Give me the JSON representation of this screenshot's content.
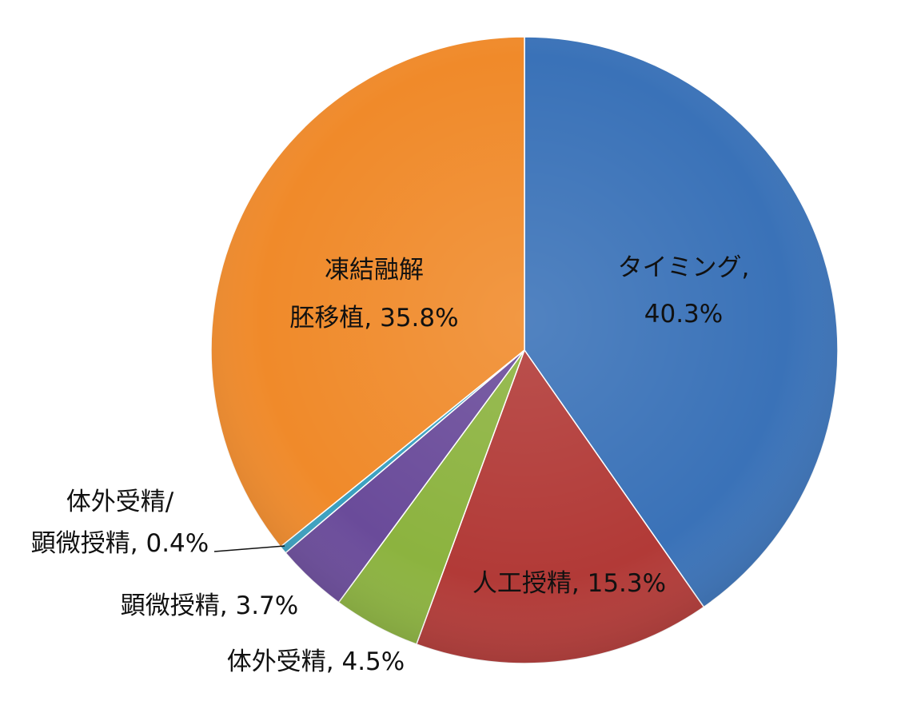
{
  "chart_data": {
    "type": "pie",
    "start_angle_deg": 0,
    "direction": "clockwise",
    "slices": [
      {
        "name": "タイミング",
        "value": 40.3,
        "color": "#3a72b8",
        "label_lines": [
          "タイミング,",
          "40.3%"
        ]
      },
      {
        "name": "人工授精",
        "value": 15.3,
        "color": "#b23a37",
        "label_lines": [
          "人工授精, 15.3%"
        ]
      },
      {
        "name": "体外受精",
        "value": 4.5,
        "color": "#8cb33f",
        "label_lines": [
          "体外受精, 4.5%"
        ]
      },
      {
        "name": "顕微授精",
        "value": 3.7,
        "color": "#6a4b9a",
        "label_lines": [
          "顕微授精, 3.7%"
        ]
      },
      {
        "name": "体外受精/顕微授精",
        "value": 0.4,
        "color": "#3aa0c0",
        "label_lines": [
          "体外受精/",
          "顕微授精, 0.4%"
        ]
      },
      {
        "name": "凍結融解胚移植",
        "value": 35.8,
        "color": "#f08a2a",
        "label_lines": [
          "凍結融解",
          "胚移植, 35.8%"
        ]
      }
    ]
  }
}
